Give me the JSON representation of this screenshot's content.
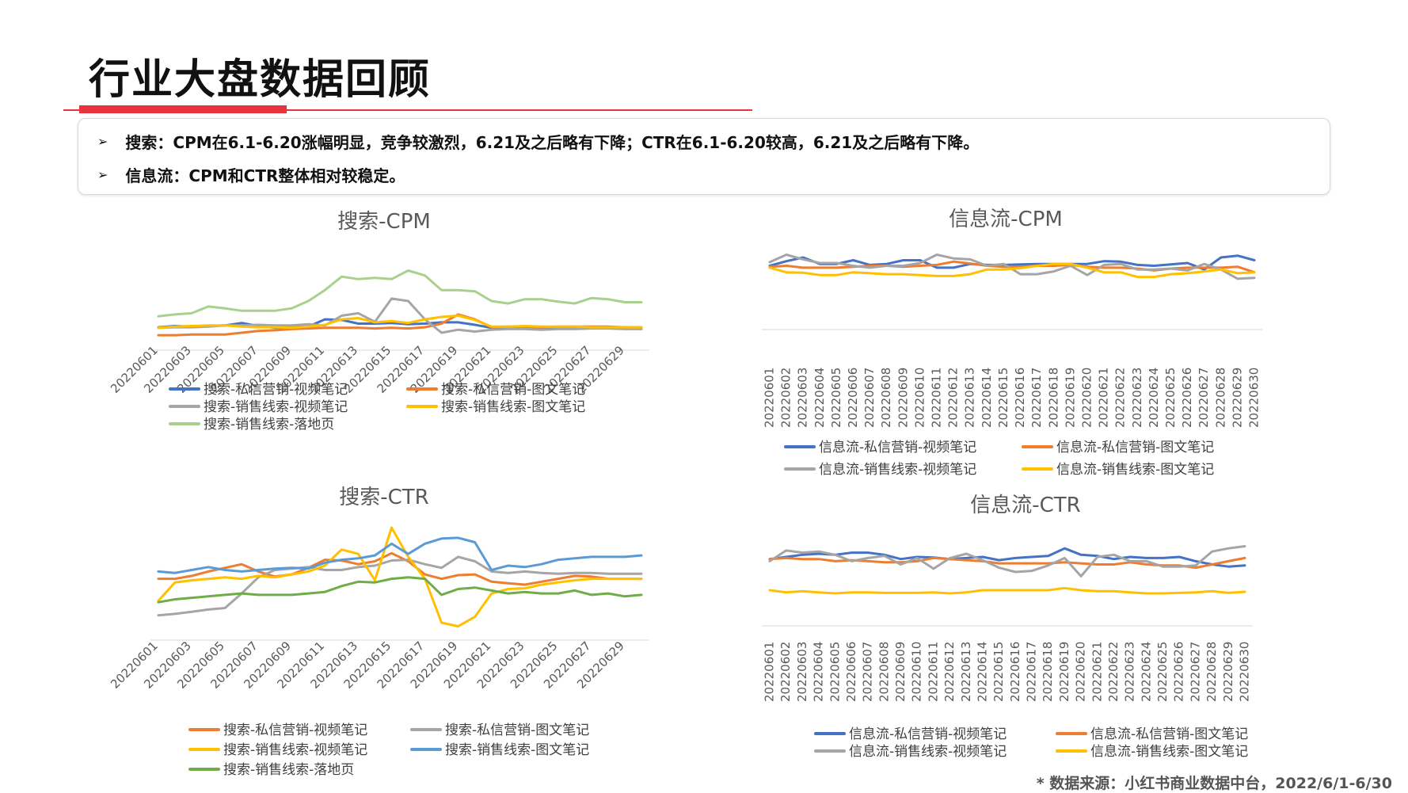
{
  "page": {
    "title": "行业大盘数据回顾",
    "summary": [
      "搜索：CPM在6.1-6.20涨幅明显，竞争较激烈，6.21及之后略有下降；CTR在6.1-6.20较高，6.21及之后略有下降。",
      "信息流：CPM和CTR整体相对较稳定。"
    ],
    "source": "* 数据来源：小红书商业数据中台，2022/6/1-6/30"
  },
  "chart_data": [
    {
      "id": "search-cpm",
      "type": "line",
      "title": "搜索-CPM",
      "ylim": [
        0,
        130
      ],
      "x": [
        "20220601",
        "20220602",
        "20220603",
        "20220604",
        "20220605",
        "20220606",
        "20220607",
        "20220608",
        "20220609",
        "20220610",
        "20220611",
        "20220612",
        "20220613",
        "20220614",
        "20220615",
        "20220616",
        "20220617",
        "20220618",
        "20220619",
        "20220620",
        "20220621",
        "20220622",
        "20220623",
        "20220624",
        "20220625",
        "20220626",
        "20220627",
        "20220628",
        "20220629",
        "20220630"
      ],
      "x_tick_labels": [
        "20220601",
        "20220603",
        "20220605",
        "20220607",
        "20220609",
        "20220611",
        "20220613",
        "20220615",
        "20220617",
        "20220619",
        "20220621",
        "20220623",
        "20220625",
        "20220627",
        "20220629"
      ],
      "legend_columns": 2,
      "series": [
        {
          "name": "搜索-私信营销-视频笔记",
          "color": "#4472c4",
          "values": [
            9,
            11,
            10,
            11,
            12,
            16,
            11,
            8,
            9,
            10,
            22,
            21,
            15,
            15,
            16,
            14,
            15,
            17,
            17,
            13,
            8,
            9,
            8,
            8,
            9,
            9,
            8,
            9,
            8,
            8
          ]
        },
        {
          "name": "搜索-私信营销-图文笔记",
          "color": "#ed7d31",
          "values": [
            -4,
            -4,
            -3,
            -3,
            -3,
            0,
            3,
            4,
            6,
            7,
            8,
            8,
            8,
            7,
            8,
            7,
            9,
            15,
            30,
            22,
            9,
            10,
            9,
            9,
            10,
            10,
            10,
            10,
            9,
            9
          ]
        },
        {
          "name": "搜索-销售线索-视频笔记",
          "color": "#a5a5a5",
          "values": [
            8,
            9,
            9,
            10,
            12,
            12,
            13,
            12,
            12,
            14,
            12,
            28,
            32,
            18,
            56,
            52,
            22,
            0,
            5,
            2,
            5,
            6,
            6,
            5,
            6,
            6,
            7,
            7,
            6,
            6
          ]
        },
        {
          "name": "搜索-销售线索-图文笔记",
          "color": "#ffc000",
          "values": [
            8,
            10,
            11,
            12,
            12,
            10,
            9,
            9,
            8,
            10,
            13,
            22,
            24,
            17,
            19,
            16,
            22,
            26,
            28,
            21,
            10,
            10,
            11,
            10,
            10,
            10,
            9,
            9,
            9,
            9
          ]
        },
        {
          "name": "搜索-销售线索-落地页",
          "color": "#a9d18e",
          "values": [
            27,
            30,
            32,
            43,
            40,
            36,
            36,
            36,
            40,
            52,
            70,
            92,
            88,
            90,
            88,
            102,
            94,
            70,
            70,
            68,
            52,
            48,
            55,
            55,
            51,
            48,
            57,
            55,
            50,
            50
          ]
        }
      ]
    },
    {
      "id": "search-ctr",
      "type": "line",
      "title": "搜索-CTR",
      "ylim": [
        0,
        130
      ],
      "x": [
        "20220601",
        "20220602",
        "20220603",
        "20220604",
        "20220605",
        "20220606",
        "20220607",
        "20220608",
        "20220609",
        "20220610",
        "20220611",
        "20220612",
        "20220613",
        "20220614",
        "20220615",
        "20220616",
        "20220617",
        "20220618",
        "20220619",
        "20220620",
        "20220621",
        "20220622",
        "20220623",
        "20220624",
        "20220625",
        "20220626",
        "20220627",
        "20220628",
        "20220629",
        "20220630"
      ],
      "x_tick_labels": [
        "20220601",
        "20220603",
        "20220605",
        "20220607",
        "20220609",
        "20220611",
        "20220613",
        "20220615",
        "20220617",
        "20220619",
        "20220621",
        "20220623",
        "20220625",
        "20220627",
        "20220629"
      ],
      "legend_columns": 2,
      "series": [
        {
          "name": "搜索-私信营销-视频笔记",
          "color": "#ed7d31",
          "values": [
            60,
            60,
            64,
            70,
            75,
            80,
            70,
            63,
            66,
            75,
            86,
            85,
            80,
            84,
            95,
            84,
            66,
            60,
            65,
            66,
            56,
            54,
            52,
            56,
            60,
            64,
            63,
            60,
            60,
            60
          ]
        },
        {
          "name": "搜索-私信营销-图文笔记",
          "color": "#a5a5a5",
          "values": [
            10,
            12,
            15,
            18,
            20,
            40,
            62,
            72,
            74,
            76,
            72,
            72,
            76,
            78,
            85,
            86,
            80,
            75,
            90,
            84,
            70,
            68,
            70,
            68,
            67,
            68,
            68,
            67,
            67,
            67
          ]
        },
        {
          "name": "搜索-销售线索-视频笔记",
          "color": "#ffc000",
          "values": [
            30,
            55,
            58,
            60,
            62,
            60,
            64,
            62,
            66,
            70,
            78,
            100,
            94,
            58,
            130,
            90,
            60,
            0,
            -5,
            8,
            40,
            46,
            47,
            52,
            55,
            58,
            60,
            60,
            60,
            60
          ]
        },
        {
          "name": "搜索-销售线索-图文笔记",
          "color": "#5b9bd5",
          "values": [
            70,
            68,
            72,
            76,
            72,
            70,
            72,
            74,
            75,
            74,
            82,
            86,
            88,
            92,
            108,
            94,
            108,
            115,
            116,
            110,
            72,
            78,
            76,
            80,
            86,
            88,
            90,
            90,
            90,
            92
          ]
        },
        {
          "name": "搜索-销售线索-落地页",
          "color": "#70ad47",
          "values": [
            28,
            32,
            34,
            36,
            38,
            40,
            38,
            38,
            38,
            40,
            42,
            50,
            56,
            55,
            60,
            62,
            60,
            38,
            46,
            48,
            44,
            40,
            42,
            40,
            40,
            44,
            38,
            40,
            36,
            38
          ]
        }
      ]
    },
    {
      "id": "feed-cpm",
      "type": "line",
      "title": "信息流-CPM",
      "ylim": [
        0,
        130
      ],
      "x": [
        "20220601",
        "20220602",
        "20220603",
        "20220604",
        "20220605",
        "20220606",
        "20220607",
        "20220608",
        "20220609",
        "20220610",
        "20220611",
        "20220612",
        "20220613",
        "20220614",
        "20220615",
        "20220616",
        "20220617",
        "20220618",
        "20220619",
        "20220620",
        "20220621",
        "20220622",
        "20220623",
        "20220624",
        "20220625",
        "20220626",
        "20220627",
        "20220628",
        "20220629",
        "20220630"
      ],
      "x_tick_labels": [
        "20220601",
        "20220602",
        "20220603",
        "20220604",
        "20220605",
        "20220606",
        "20220607",
        "20220608",
        "20220609",
        "20220610",
        "20220611",
        "20220612",
        "20220613",
        "20220614",
        "20220615",
        "20220616",
        "20220617",
        "20220618",
        "20220619",
        "20220620",
        "20220621",
        "20220622",
        "20220623",
        "20220624",
        "20220625",
        "20220626",
        "20220627",
        "20220628",
        "20220629",
        "20220630"
      ],
      "legend_columns": 2,
      "series": [
        {
          "name": "信息流-私信营销-视频笔记",
          "color": "#4472c4",
          "values": [
            100,
            110,
            118,
            104,
            104,
            112,
            102,
            104,
            112,
            112,
            96,
            96,
            104,
            102,
            102,
            103,
            104,
            104,
            104,
            104,
            110,
            109,
            102,
            100,
            103,
            106,
            92,
            118,
            122,
            112
          ]
        },
        {
          "name": "信息流-私信营销-图文笔记",
          "color": "#ed7d31",
          "values": [
            98,
            100,
            96,
            96,
            96,
            98,
            100,
            100,
            98,
            100,
            102,
            109,
            105,
            100,
            98,
            98,
            100,
            100,
            102,
            98,
            96,
            96,
            94,
            90,
            94,
            96,
            96,
            96,
            98,
            86
          ]
        },
        {
          "name": "信息流-销售线索-视频笔记",
          "color": "#a5a5a5",
          "values": [
            108,
            124,
            114,
            106,
            106,
            100,
            96,
            100,
            100,
            106,
            124,
            116,
            114,
            100,
            104,
            82,
            82,
            88,
            100,
            80,
            102,
            104,
            92,
            92,
            94,
            90,
            104,
            92,
            72,
            74
          ]
        },
        {
          "name": "信息流-销售线索-图文笔记",
          "color": "#ffc000",
          "values": [
            96,
            86,
            85,
            80,
            80,
            86,
            84,
            82,
            82,
            80,
            78,
            78,
            82,
            92,
            92,
            95,
            100,
            104,
            104,
            96,
            86,
            86,
            76,
            76,
            82,
            84,
            88,
            92,
            84,
            86
          ]
        }
      ]
    },
    {
      "id": "feed-ctr",
      "type": "line",
      "title": "信息流-CTR",
      "ylim": [
        0,
        130
      ],
      "x": [
        "20220601",
        "20220602",
        "20220603",
        "20220604",
        "20220605",
        "20220606",
        "20220607",
        "20220608",
        "20220609",
        "20220610",
        "20220611",
        "20220612",
        "20220613",
        "20220614",
        "20220615",
        "20220616",
        "20220617",
        "20220618",
        "20220619",
        "20220620",
        "20220621",
        "20220622",
        "20220623",
        "20220624",
        "20220625",
        "20220626",
        "20220627",
        "20220628",
        "20220629",
        "20220630"
      ],
      "x_tick_labels": [
        "20220601",
        "20220602",
        "20220603",
        "20220604",
        "20220605",
        "20220606",
        "20220607",
        "20220608",
        "20220609",
        "20220610",
        "20220611",
        "20220612",
        "20220613",
        "20220614",
        "20220615",
        "20220616",
        "20220617",
        "20220618",
        "20220619",
        "20220620",
        "20220621",
        "20220622",
        "20220623",
        "20220624",
        "20220625",
        "20220626",
        "20220627",
        "20220628",
        "20220629",
        "20220630"
      ],
      "legend_columns": 2,
      "series": [
        {
          "name": "信息流-私信营销-视频笔记",
          "color": "#4472c4",
          "values": [
            92,
            96,
            100,
            102,
            100,
            104,
            104,
            100,
            92,
            96,
            95,
            92,
            94,
            96,
            90,
            94,
            96,
            98,
            112,
            100,
            98,
            92,
            96,
            94,
            94,
            96,
            88,
            82,
            78,
            80
          ]
        },
        {
          "name": "信息流-私信营销-图文笔记",
          "color": "#ed7d31",
          "values": [
            92,
            94,
            92,
            92,
            88,
            90,
            88,
            86,
            86,
            88,
            94,
            92,
            90,
            88,
            84,
            84,
            84,
            84,
            86,
            84,
            82,
            82,
            86,
            82,
            80,
            80,
            76,
            82,
            88,
            94
          ]
        },
        {
          "name": "信息流-销售线索-视频笔记",
          "color": "#a5a5a5",
          "values": [
            88,
            108,
            104,
            106,
            100,
            88,
            94,
            98,
            82,
            94,
            74,
            94,
            102,
            90,
            76,
            68,
            70,
            80,
            94,
            60,
            96,
            100,
            88,
            88,
            78,
            78,
            80,
            106,
            112,
            116
          ]
        },
        {
          "name": "信息流-销售线索-图文笔记",
          "color": "#ffc000",
          "values": [
            34,
            30,
            32,
            30,
            28,
            30,
            30,
            29,
            29,
            29,
            30,
            28,
            30,
            34,
            34,
            34,
            34,
            34,
            38,
            34,
            32,
            32,
            30,
            28,
            28,
            29,
            30,
            32,
            29,
            31
          ]
        }
      ]
    }
  ]
}
